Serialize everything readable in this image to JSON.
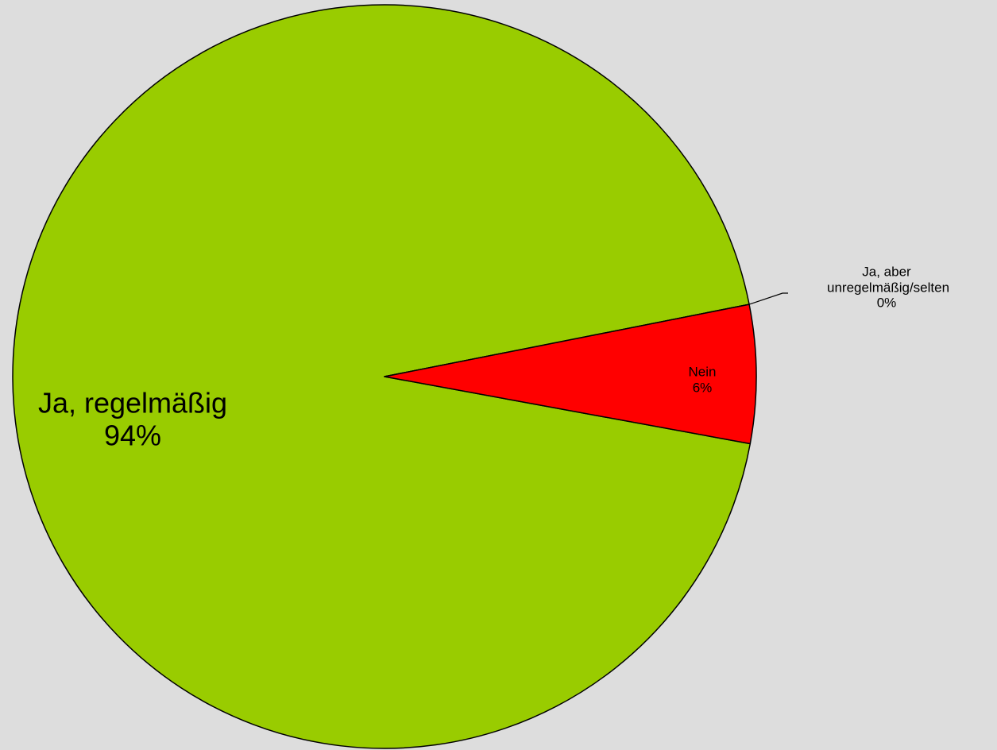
{
  "chart_data": {
    "type": "pie",
    "categories": [
      "Ja, regelmäßig",
      "Ja, aber unregelmäßig/selten",
      "Nein"
    ],
    "values": [
      94,
      0,
      6
    ],
    "value_labels": [
      "94%",
      "0%",
      "6%"
    ],
    "colors": [
      "#99cc00",
      "#ffff00",
      "#ff0000"
    ]
  }
}
